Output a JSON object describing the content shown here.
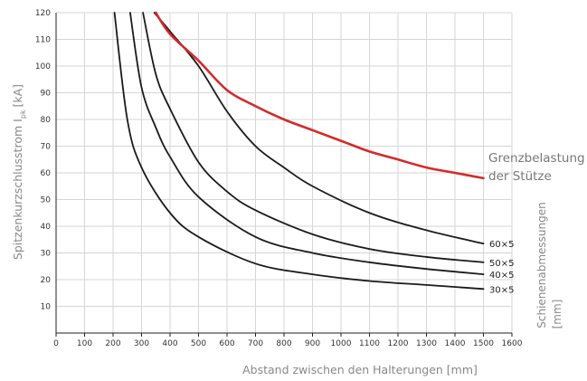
{
  "chart_data": {
    "type": "line",
    "xlabel": "Abstand zwischen den Halterungen [mm]",
    "ylabel": "Spitzenkurzschlusstrom I",
    "ylabel_sub": "pk",
    "ylabel_unit": "[kA]",
    "xlim": [
      0,
      1600
    ],
    "ylim": [
      0,
      120
    ],
    "xticks": [
      0,
      100,
      200,
      300,
      400,
      500,
      600,
      700,
      800,
      900,
      1000,
      1100,
      1200,
      1300,
      1400,
      1500,
      1600
    ],
    "yticks": [
      10,
      20,
      30,
      40,
      50,
      60,
      70,
      80,
      90,
      100,
      110,
      120
    ],
    "grid": true,
    "series_legend_title": [
      "Schienenabmessungen",
      "[mm]"
    ],
    "series": [
      {
        "name": "30×5",
        "color": "#1a1a1a",
        "x": [
          205,
          250,
          300,
          400,
          500,
          700,
          900,
          1100,
          1300,
          1500
        ],
        "y": [
          120,
          80,
          62,
          45,
          36,
          26,
          22,
          19.5,
          18,
          16.5
        ]
      },
      {
        "name": "40×5",
        "color": "#1a1a1a",
        "x": [
          260,
          300,
          350,
          400,
          500,
          700,
          900,
          1100,
          1300,
          1500
        ],
        "y": [
          120,
          92,
          77,
          66,
          51,
          36,
          30,
          26.5,
          24,
          22
        ]
      },
      {
        "name": "50×5",
        "color": "#1a1a1a",
        "x": [
          305,
          350,
          400,
          500,
          600,
          700,
          900,
          1100,
          1300,
          1500
        ],
        "y": [
          120,
          97,
          84,
          64,
          53,
          46,
          37,
          31.5,
          28.5,
          26.5
        ]
      },
      {
        "name": "60×5",
        "color": "#1a1a1a",
        "x": [
          345,
          400,
          500,
          600,
          700,
          800,
          900,
          1100,
          1300,
          1500
        ],
        "y": [
          120,
          113,
          100,
          83,
          70,
          62,
          55,
          45,
          38.5,
          33.5
        ]
      },
      {
        "name": "Grenzbelastung der Stütze",
        "color": "#d42a2a",
        "x": [
          350,
          400,
          500,
          600,
          700,
          800,
          900,
          1000,
          1100,
          1200,
          1300,
          1400,
          1500
        ],
        "y": [
          120,
          112,
          102,
          91,
          85,
          80,
          76,
          72,
          68,
          65,
          62,
          60,
          58
        ]
      }
    ],
    "annotations": [
      "Grenzbelastung",
      "der Stütze"
    ]
  }
}
